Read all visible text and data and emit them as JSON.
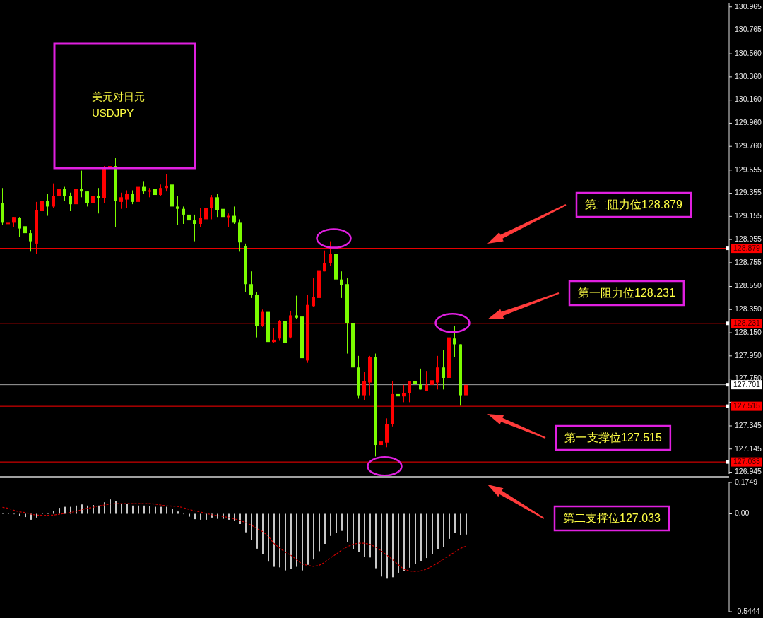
{
  "chart_data": [
    {
      "type": "candlestick",
      "tick_labels": "y",
      "categories": [
        null,
        null,
        null,
        null,
        null,
        null,
        null,
        null,
        null,
        null,
        null,
        null,
        null,
        null,
        null,
        null,
        null,
        null,
        null,
        null,
        null,
        null,
        null,
        null,
        null,
        null,
        null,
        null,
        null,
        null,
        null,
        null,
        null,
        null,
        null,
        null,
        null,
        null,
        null,
        null,
        null,
        null,
        null,
        null,
        null,
        null,
        null,
        null,
        null,
        null,
        null,
        null,
        null,
        null,
        null,
        null,
        null,
        null,
        null,
        null,
        null,
        null,
        null,
        null,
        null,
        null,
        null,
        null,
        null,
        null,
        null,
        null,
        null,
        null,
        null,
        null,
        null,
        null,
        null,
        null,
        null,
        null,
        null,
        null,
        null,
        null,
        null,
        null,
        null,
        null,
        null,
        null,
        null,
        null,
        null,
        null,
        null,
        null,
        null,
        null,
        null,
        null,
        null,
        null,
        null,
        null,
        null,
        null,
        null,
        null,
        null,
        null,
        null,
        null,
        null,
        null,
        null,
        null,
        null,
        null,
        null,
        null,
        null,
        null,
        null,
        null,
        null,
        null,
        null
      ],
      "ohlc": [
        [
          129.27,
          129.4,
          129.08,
          129.1
        ],
        [
          129.1,
          129.13,
          129.01,
          129.1
        ],
        [
          129.1,
          129.15,
          129.06,
          129.15
        ],
        [
          129.14,
          129.15,
          128.98,
          129.05
        ],
        [
          129.07,
          129.07,
          128.94,
          129.01
        ],
        [
          129.01,
          129.04,
          128.85,
          128.94
        ],
        [
          128.92,
          129.28,
          128.83,
          129.21
        ],
        [
          129.2,
          129.35,
          129.1,
          129.29
        ],
        [
          129.29,
          129.35,
          129.16,
          129.24
        ],
        [
          129.24,
          129.44,
          129.23,
          129.33
        ],
        [
          129.33,
          129.43,
          129.29,
          129.39
        ],
        [
          129.39,
          129.41,
          129.29,
          129.33
        ],
        [
          129.33,
          129.36,
          129.2,
          129.26
        ],
        [
          129.26,
          129.42,
          129.25,
          129.39
        ],
        [
          129.39,
          129.55,
          129.32,
          129.37
        ],
        [
          129.37,
          129.37,
          129.24,
          129.27
        ],
        [
          129.27,
          129.34,
          129.2,
          129.33
        ],
        [
          129.33,
          129.4,
          129.18,
          129.31
        ],
        [
          129.31,
          129.59,
          129.27,
          129.57
        ],
        [
          129.58,
          129.77,
          129.49,
          129.59
        ],
        [
          129.59,
          129.66,
          129.06,
          129.29
        ],
        [
          129.28,
          129.36,
          129.22,
          129.32
        ],
        [
          129.3,
          129.38,
          129.23,
          129.35
        ],
        [
          129.35,
          129.38,
          129.26,
          129.28
        ],
        [
          129.28,
          129.45,
          129.18,
          129.41
        ],
        [
          129.41,
          129.46,
          129.35,
          129.37
        ],
        [
          129.37,
          129.4,
          129.32,
          129.38
        ],
        [
          129.39,
          129.4,
          129.33,
          129.34
        ],
        [
          129.34,
          129.43,
          129.33,
          129.4
        ],
        [
          129.4,
          129.52,
          129.37,
          129.42
        ],
        [
          129.43,
          129.46,
          129.22,
          129.24
        ],
        [
          129.24,
          129.33,
          129.08,
          129.22
        ],
        [
          129.22,
          129.24,
          129.09,
          129.17
        ],
        [
          129.17,
          129.19,
          129.07,
          129.12
        ],
        [
          129.12,
          129.17,
          128.94,
          129.09
        ],
        [
          129.09,
          129.23,
          129.06,
          129.14
        ],
        [
          129.13,
          129.28,
          129.01,
          129.23
        ],
        [
          129.23,
          129.34,
          129.13,
          129.32
        ],
        [
          129.32,
          129.35,
          129.15,
          129.21
        ],
        [
          129.22,
          129.24,
          129.11,
          129.15
        ],
        [
          129.15,
          129.18,
          129.06,
          129.16
        ],
        [
          129.16,
          129.24,
          129.09,
          129.1
        ],
        [
          129.1,
          129.13,
          128.85,
          128.93
        ],
        [
          128.9,
          128.92,
          128.5,
          128.57
        ],
        [
          128.57,
          128.68,
          128.45,
          128.48
        ],
        [
          128.48,
          128.5,
          128.11,
          128.21
        ],
        [
          128.21,
          128.35,
          128.2,
          128.33
        ],
        [
          128.33,
          128.34,
          128.0,
          128.07
        ],
        [
          128.07,
          128.19,
          128.06,
          128.09
        ],
        [
          128.1,
          128.26,
          128.08,
          128.25
        ],
        [
          128.25,
          128.28,
          128.05,
          128.06
        ],
        [
          128.11,
          128.34,
          128.1,
          128.3
        ],
        [
          128.3,
          128.47,
          128.27,
          128.28
        ],
        [
          128.29,
          128.39,
          127.89,
          127.93
        ],
        [
          127.91,
          128.48,
          127.89,
          128.39
        ],
        [
          128.38,
          128.62,
          128.37,
          128.46
        ],
        [
          128.45,
          128.72,
          128.42,
          128.69
        ],
        [
          128.68,
          128.86,
          128.68,
          128.75
        ],
        [
          128.75,
          128.94,
          128.73,
          128.83
        ],
        [
          128.83,
          128.88,
          128.59,
          128.61
        ],
        [
          128.61,
          128.68,
          128.45,
          128.56
        ],
        [
          128.57,
          128.62,
          127.97,
          128.23
        ],
        [
          128.23,
          128.23,
          127.8,
          127.85
        ],
        [
          127.85,
          127.95,
          127.58,
          127.61
        ],
        [
          127.61,
          127.81,
          127.57,
          127.73
        ],
        [
          127.72,
          127.95,
          127.61,
          127.94
        ],
        [
          127.94,
          127.97,
          127.08,
          127.18
        ],
        [
          127.18,
          127.47,
          127.02,
          127.21
        ],
        [
          127.2,
          127.41,
          127.16,
          127.36
        ],
        [
          127.36,
          127.73,
          127.34,
          127.62
        ],
        [
          127.62,
          127.7,
          127.51,
          127.6
        ],
        [
          127.6,
          127.7,
          127.55,
          127.63
        ],
        [
          127.63,
          127.73,
          127.55,
          127.73
        ],
        [
          127.73,
          127.75,
          127.66,
          127.71
        ],
        [
          127.71,
          127.84,
          127.66,
          127.66
        ],
        [
          127.65,
          127.82,
          127.65,
          127.7
        ],
        [
          127.7,
          127.79,
          127.66,
          127.74
        ],
        [
          127.72,
          127.95,
          127.66,
          127.85
        ],
        [
          127.85,
          128.0,
          127.66,
          127.76
        ],
        [
          127.76,
          128.21,
          127.69,
          128.11
        ],
        [
          128.1,
          128.21,
          127.94,
          128.05
        ],
        [
          128.05,
          128.05,
          127.52,
          127.61
        ],
        [
          127.61,
          127.78,
          127.55,
          127.7
        ],
        null,
        null,
        null,
        null,
        null,
        null,
        null,
        null,
        null,
        null,
        null,
        null,
        null,
        null,
        null,
        null,
        null,
        null,
        null,
        null,
        null,
        null,
        null,
        null,
        null,
        null,
        null,
        null,
        null,
        null,
        null,
        null,
        null,
        null,
        null,
        null,
        null,
        null,
        null,
        null,
        null,
        null,
        null,
        null,
        null,
        null
      ],
      "ylim": [
        126.93,
        131.0
      ],
      "yticks": [
        130.965,
        130.765,
        {
          "value": 130.56,
          "label": "130.560"
        },
        {
          "value": 130.36,
          "label": "130.360"
        },
        {
          "value": 130.16,
          "label": "130.160"
        },
        {
          "value": 129.96,
          "label": "129.960"
        },
        {
          "value": 129.76,
          "label": "129.760"
        },
        129.555,
        129.355,
        129.155,
        128.955,
        128.755,
        {
          "value": 128.55,
          "label": "128.550"
        },
        {
          "value": 128.35,
          "label": "128.350"
        },
        {
          "value": 128.15,
          "label": "128.150"
        },
        {
          "value": 127.95,
          "label": "127.950"
        },
        {
          "value": 127.75,
          "label": "127.750"
        },
        {
          "value": 127.55,
          "label": null
        },
        127.345,
        127.145,
        126.945
      ],
      "ref_lines": [
        {
          "axis": "y",
          "value": 128.879,
          "label": "128.879",
          "color": "#ff0000"
        },
        {
          "axis": "y",
          "value": 128.231,
          "label": "128.231",
          "color": "#ff0000"
        },
        {
          "axis": "y",
          "value": 127.701,
          "label": "127.701",
          "color": "#a0a0a0"
        },
        {
          "axis": "y",
          "value": 127.515,
          "label": "127.515",
          "color": "#ff0000"
        },
        {
          "axis": "y",
          "value": 127.033,
          "label": "127.033",
          "color": "#ff0000"
        }
      ],
      "title": "美元对日元",
      "subtitle": "USDJPY",
      "annotations": [
        "第二阻力位128.879",
        "第一阻力位128.231",
        "第一支撑位127.515",
        "第二支撑位127.033"
      ]
    },
    {
      "type": "bar",
      "tick_labels": "y",
      "categories": [
        null,
        null,
        null,
        null,
        null,
        null,
        null,
        null,
        null,
        null,
        null,
        null,
        null,
        null,
        null,
        null,
        null,
        null,
        null,
        null,
        null,
        null,
        null,
        null,
        null,
        null,
        null,
        null,
        null,
        null,
        null,
        null,
        null,
        null,
        null,
        null,
        null,
        null,
        null,
        null,
        null,
        null,
        null,
        null,
        null,
        null,
        null,
        null,
        null,
        null,
        null,
        null,
        null,
        null,
        null,
        null,
        null,
        null,
        null,
        null,
        null,
        null,
        null,
        null,
        null,
        null,
        null,
        null,
        null,
        null,
        null,
        null,
        null,
        null,
        null,
        null,
        null,
        null,
        null,
        null,
        null,
        null,
        null,
        null,
        null,
        null,
        null,
        null,
        null,
        null,
        null,
        null,
        null,
        null,
        null,
        null,
        null,
        null,
        null,
        null,
        null,
        null,
        null,
        null,
        null,
        null,
        null,
        null,
        null,
        null,
        null,
        null,
        null,
        null,
        null,
        null,
        null,
        null,
        null,
        null,
        null,
        null,
        null,
        null,
        null,
        null,
        null,
        null,
        null
      ],
      "ylim": [
        -0.5444,
        0.1749
      ],
      "yticks": [
        0.1749,
        {
          "value": 0,
          "label": "0.00"
        },
        -0.5444
      ],
      "series": [
        {
          "type": "bar",
          "color": "#c8c8c8",
          "values": [
            0.005,
            0.005,
            0,
            -0.01,
            -0.018,
            -0.033,
            -0.021,
            0.005,
            0.005,
            0.016,
            0.033,
            0.039,
            0.039,
            0.046,
            0.052,
            0.046,
            0.049,
            0.046,
            0.064,
            0.08,
            0.069,
            0.057,
            0.054,
            0.046,
            0.046,
            0.046,
            0.043,
            0.039,
            0.039,
            0.039,
            0.028,
            0.013,
            0,
            -0.016,
            -0.03,
            -0.033,
            -0.033,
            -0.021,
            -0.028,
            -0.028,
            -0.033,
            -0.041,
            -0.057,
            -0.103,
            -0.144,
            -0.194,
            -0.225,
            -0.266,
            -0.295,
            -0.298,
            -0.315,
            -0.307,
            -0.295,
            -0.315,
            -0.284,
            -0.254,
            -0.208,
            -0.167,
            -0.123,
            -0.107,
            -0.095,
            -0.159,
            -0.197,
            -0.213,
            -0.238,
            -0.243,
            -0.303,
            -0.349,
            -0.361,
            -0.353,
            -0.328,
            -0.317,
            -0.3,
            -0.28,
            -0.262,
            -0.246,
            -0.226,
            -0.197,
            -0.184,
            -0.139,
            -0.107,
            -0.12,
            -0.115,
            null,
            null,
            null,
            null,
            null,
            null,
            null,
            null,
            null,
            null,
            null,
            null,
            null,
            null,
            null,
            null,
            null,
            null,
            null,
            null,
            null,
            null,
            null,
            null,
            null,
            null,
            null,
            null,
            null,
            null,
            null,
            null,
            null,
            null,
            null,
            null,
            null,
            null,
            null,
            null,
            null,
            null,
            null,
            null,
            null,
            null
          ]
        },
        {
          "type": "line",
          "color": "#cc0000",
          "line_style": "dashed",
          "values": [
            0.036,
            0.031,
            0.02,
            0.011,
            0.007,
            -0.002,
            -0.007,
            -0.008,
            -0.008,
            -0.007,
            -0.003,
            0.002,
            0.007,
            0.013,
            0.023,
            0.03,
            0.036,
            0.044,
            0.049,
            0.054,
            0.057,
            0.057,
            0.057,
            0.057,
            0.057,
            0.057,
            0.057,
            0.054,
            0.049,
            0.044,
            0.043,
            0.041,
            0.034,
            0.025,
            0.016,
            0.01,
            0.002,
            -0.005,
            -0.01,
            -0.015,
            -0.021,
            -0.028,
            -0.036,
            -0.049,
            -0.062,
            -0.082,
            -0.098,
            -0.123,
            -0.164,
            -0.189,
            -0.213,
            -0.23,
            -0.254,
            -0.279,
            -0.287,
            -0.292,
            -0.287,
            -0.271,
            -0.246,
            -0.225,
            -0.202,
            -0.184,
            -0.169,
            -0.164,
            -0.164,
            -0.169,
            -0.185,
            -0.205,
            -0.23,
            -0.254,
            -0.282,
            -0.308,
            -0.318,
            -0.321,
            -0.318,
            -0.308,
            -0.292,
            -0.274,
            -0.254,
            -0.234,
            -0.213,
            -0.193,
            -0.18,
            null,
            null,
            null,
            null,
            null,
            null,
            null,
            null,
            null,
            null,
            null,
            null,
            null,
            null,
            null,
            null,
            null,
            null,
            null,
            null,
            null,
            null,
            null,
            null,
            null,
            null,
            null,
            null,
            null,
            null,
            null,
            null,
            null,
            null,
            null,
            null,
            null,
            null,
            null,
            null,
            null,
            null,
            null,
            null,
            null,
            null
          ]
        }
      ]
    }
  ]
}
